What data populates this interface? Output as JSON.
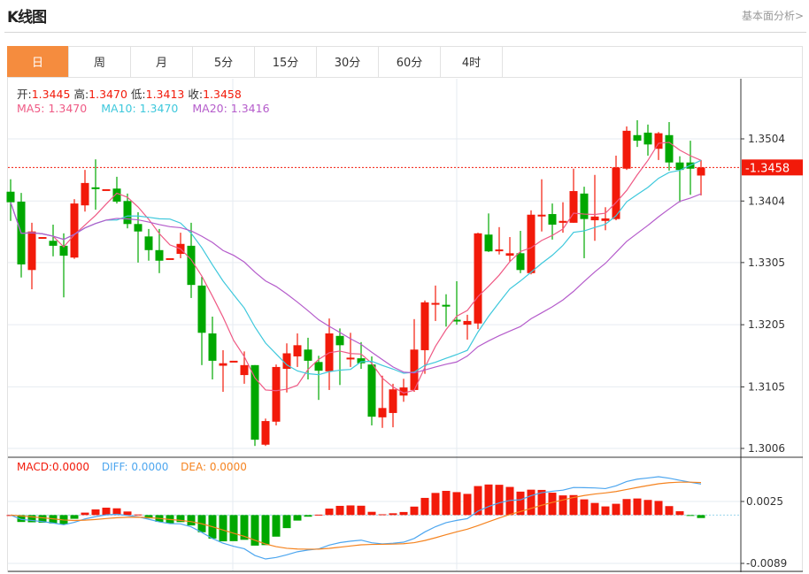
{
  "header": {
    "title": "K线图",
    "link": "基本面分析>"
  },
  "tabs": [
    {
      "label": "日",
      "active": true
    },
    {
      "label": "周"
    },
    {
      "label": "月"
    },
    {
      "label": "5分"
    },
    {
      "label": "15分"
    },
    {
      "label": "30分"
    },
    {
      "label": "60分"
    },
    {
      "label": "4时"
    }
  ],
  "ohlc_info": {
    "open_label": "开:",
    "open": "1.3445",
    "high_label": "高:",
    "high": "1.3470",
    "low_label": "低:",
    "low": "1.3413",
    "close_label": "收:",
    "close": "1.3458"
  },
  "ma_info": {
    "ma5": "MA5: 1.3470",
    "ma10": "MA10: 1.3470",
    "ma20": "MA20: 1.3416"
  },
  "macd_info": {
    "macd": "MACD:0.0000",
    "diff": "DIFF: 0.0000",
    "dea": "DEA: 0.0000"
  },
  "colors": {
    "up": "#f21a0a",
    "down": "#00a800",
    "ma5": "#ef5a85",
    "ma10": "#3ec8dc",
    "ma20": "#b55ccb",
    "diff": "#4da6ef",
    "dea": "#f5831f",
    "tab_active": "#f58c3e"
  },
  "chart_data": {
    "type": "candlestick",
    "price_axis": {
      "ticks": [
        "1.3504",
        "1.3404",
        "1.3305",
        "1.3205",
        "1.3105",
        "1.3006"
      ],
      "range": [
        1.3006,
        1.3504
      ]
    },
    "current_price": "-1.3458",
    "macd_axis": {
      "ticks": [
        "0.0025",
        "-0.0089"
      ],
      "range": [
        -0.0089,
        0.0025
      ]
    },
    "candles": [
      [
        1.3419,
        1.3439,
        1.3372,
        1.3402
      ],
      [
        1.3403,
        1.3417,
        1.3281,
        1.3302
      ],
      [
        1.3293,
        1.3369,
        1.3262,
        1.3355
      ],
      [
        1.3346,
        1.3346,
        1.3346,
        1.3346
      ],
      [
        1.334,
        1.3366,
        1.3315,
        1.3332
      ],
      [
        1.3332,
        1.3352,
        1.3249,
        1.3316
      ],
      [
        1.3313,
        1.3407,
        1.3311,
        1.34
      ],
      [
        1.3397,
        1.3454,
        1.3387,
        1.3433
      ],
      [
        1.3426,
        1.3471,
        1.339,
        1.3424
      ],
      [
        1.3423,
        1.3423,
        1.3423,
        1.3423
      ],
      [
        1.3424,
        1.3443,
        1.34,
        1.3403
      ],
      [
        1.3404,
        1.3416,
        1.336,
        1.3367
      ],
      [
        1.3367,
        1.3386,
        1.3305,
        1.3355
      ],
      [
        1.3347,
        1.3359,
        1.3308,
        1.3325
      ],
      [
        1.3325,
        1.3359,
        1.3288,
        1.3308
      ],
      [
        1.3312,
        1.3312,
        1.3312,
        1.3312
      ],
      [
        1.3319,
        1.3353,
        1.3312,
        1.3335
      ],
      [
        1.3332,
        1.3369,
        1.3248,
        1.3269
      ],
      [
        1.3268,
        1.3282,
        1.314,
        1.3192
      ],
      [
        1.3191,
        1.3218,
        1.3117,
        1.3147
      ],
      [
        1.3139,
        1.3164,
        1.3097,
        1.3143
      ],
      [
        1.3147,
        1.3147,
        1.3147,
        1.3147
      ],
      [
        1.3124,
        1.3162,
        1.311,
        1.314
      ],
      [
        1.314,
        1.314,
        1.301,
        1.302
      ],
      [
        1.3012,
        1.3054,
        1.301,
        1.305
      ],
      [
        1.3049,
        1.3141,
        1.3043,
        1.3137
      ],
      [
        1.3134,
        1.3175,
        1.3096,
        1.3159
      ],
      [
        1.3154,
        1.3191,
        1.3137,
        1.3172
      ],
      [
        1.3165,
        1.3184,
        1.3117,
        1.3147
      ],
      [
        1.3145,
        1.3155,
        1.3084,
        1.3131
      ],
      [
        1.313,
        1.3215,
        1.31,
        1.3191
      ],
      [
        1.3187,
        1.3199,
        1.3108,
        1.3172
      ],
      [
        1.3151,
        1.3192,
        1.3137,
        1.3152
      ],
      [
        1.3151,
        1.3177,
        1.3134,
        1.3143
      ],
      [
        1.3141,
        1.3154,
        1.3043,
        1.3057
      ],
      [
        1.3056,
        1.3123,
        1.3039,
        1.3071
      ],
      [
        1.3063,
        1.311,
        1.304,
        1.3101
      ],
      [
        1.3091,
        1.3118,
        1.3081,
        1.3104
      ],
      [
        1.31,
        1.3214,
        1.3097,
        1.3165
      ],
      [
        1.3164,
        1.3244,
        1.3126,
        1.3241
      ],
      [
        1.3239,
        1.3268,
        1.3211,
        1.324
      ],
      [
        1.3237,
        1.3254,
        1.3202,
        1.3236
      ],
      [
        1.3213,
        1.3275,
        1.3205,
        1.3212
      ],
      [
        1.3205,
        1.3221,
        1.3181,
        1.3211
      ],
      [
        1.3207,
        1.3353,
        1.3198,
        1.3352
      ],
      [
        1.335,
        1.3384,
        1.3322,
        1.3323
      ],
      [
        1.3325,
        1.3362,
        1.3318,
        1.3326
      ],
      [
        1.3316,
        1.3346,
        1.3306,
        1.332
      ],
      [
        1.332,
        1.3356,
        1.3288,
        1.3293
      ],
      [
        1.3288,
        1.3389,
        1.3286,
        1.3382
      ],
      [
        1.3381,
        1.3439,
        1.3355,
        1.3382
      ],
      [
        1.3383,
        1.34,
        1.3342,
        1.3366
      ],
      [
        1.3369,
        1.3402,
        1.3353,
        1.3372
      ],
      [
        1.3369,
        1.3456,
        1.3369,
        1.342
      ],
      [
        1.3416,
        1.3427,
        1.3312,
        1.3375
      ],
      [
        1.3373,
        1.3446,
        1.334,
        1.3379
      ],
      [
        1.3372,
        1.3394,
        1.3357,
        1.3376
      ],
      [
        1.3375,
        1.3477,
        1.3373,
        1.3458
      ],
      [
        1.3456,
        1.3524,
        1.3454,
        1.3517
      ],
      [
        1.351,
        1.3534,
        1.3491,
        1.3501
      ],
      [
        1.3514,
        1.3527,
        1.3477,
        1.3495
      ],
      [
        1.3488,
        1.3515,
        1.347,
        1.3513
      ],
      [
        1.351,
        1.3531,
        1.3453,
        1.3466
      ],
      [
        1.3466,
        1.3476,
        1.3402,
        1.3454
      ],
      [
        1.3466,
        1.3501,
        1.3414,
        1.3456
      ],
      [
        1.3445,
        1.347,
        1.3413,
        1.3458
      ]
    ],
    "candle_format": [
      "open",
      "high",
      "low",
      "close"
    ],
    "indicators": [
      "MA5",
      "MA10",
      "MA20",
      "MACD(12,26,9)"
    ],
    "grid": true
  }
}
